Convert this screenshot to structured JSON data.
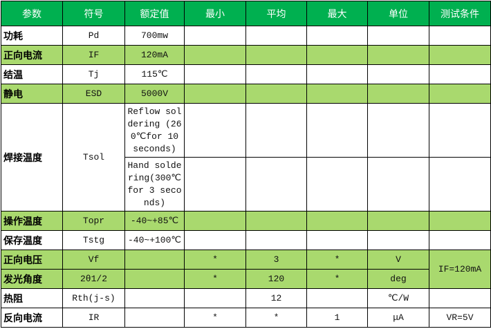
{
  "colors": {
    "header": "#00b050",
    "highlight": "#a9d96e"
  },
  "headers": [
    "参数",
    "符号",
    "额定值",
    "最小",
    "平均",
    "最大",
    "单位",
    "测试条件"
  ],
  "rows": [
    {
      "param": "功耗",
      "symbol": "Pd",
      "rating": "700mw",
      "min": "",
      "avg": "",
      "max": "",
      "unit": "",
      "cond": ""
    },
    {
      "param": "正向电流",
      "symbol": "IF",
      "rating": "120mA",
      "min": "",
      "avg": "",
      "max": "",
      "unit": "",
      "cond": ""
    },
    {
      "param": "结温",
      "symbol": "Tj",
      "rating": "115℃",
      "min": "",
      "avg": "",
      "max": "",
      "unit": "",
      "cond": ""
    },
    {
      "param": "静电",
      "symbol": "ESD",
      "rating": "5000V",
      "min": "",
      "avg": "",
      "max": "",
      "unit": "",
      "cond": ""
    },
    {
      "param": "焊接温度",
      "symbol": "Tsol",
      "rating": "Reflow soldering (260℃for 10 seconds)",
      "rating2": "Hand soldering(300℃for 3 seconds)"
    },
    {
      "param": "操作温度",
      "symbol": "Topr",
      "rating": "-40~+85℃",
      "min": "",
      "avg": "",
      "max": "",
      "unit": "",
      "cond": ""
    },
    {
      "param": "保存温度",
      "symbol": "Tstg",
      "rating": "-40~+100℃",
      "min": "",
      "avg": "",
      "max": "",
      "unit": "",
      "cond": ""
    },
    {
      "param": "正向电压",
      "symbol": "Vf",
      "rating": "",
      "min": "*",
      "avg": "3",
      "max": "*",
      "unit": "V",
      "cond": "IF=120mA"
    },
    {
      "param": "发光角度",
      "symbol": "2θ1/2",
      "rating": "",
      "min": "*",
      "avg": "120",
      "max": "*",
      "unit": "deg"
    },
    {
      "param": "热阻",
      "symbol": "Rth(j-s)",
      "rating": "",
      "min": "",
      "avg": "12",
      "max": "",
      "unit": "℃/W",
      "cond": ""
    },
    {
      "param": "反向电流",
      "symbol": "IR",
      "rating": "",
      "min": "*",
      "avg": "*",
      "max": "1",
      "unit": "μA",
      "cond": "VR=5V"
    }
  ]
}
